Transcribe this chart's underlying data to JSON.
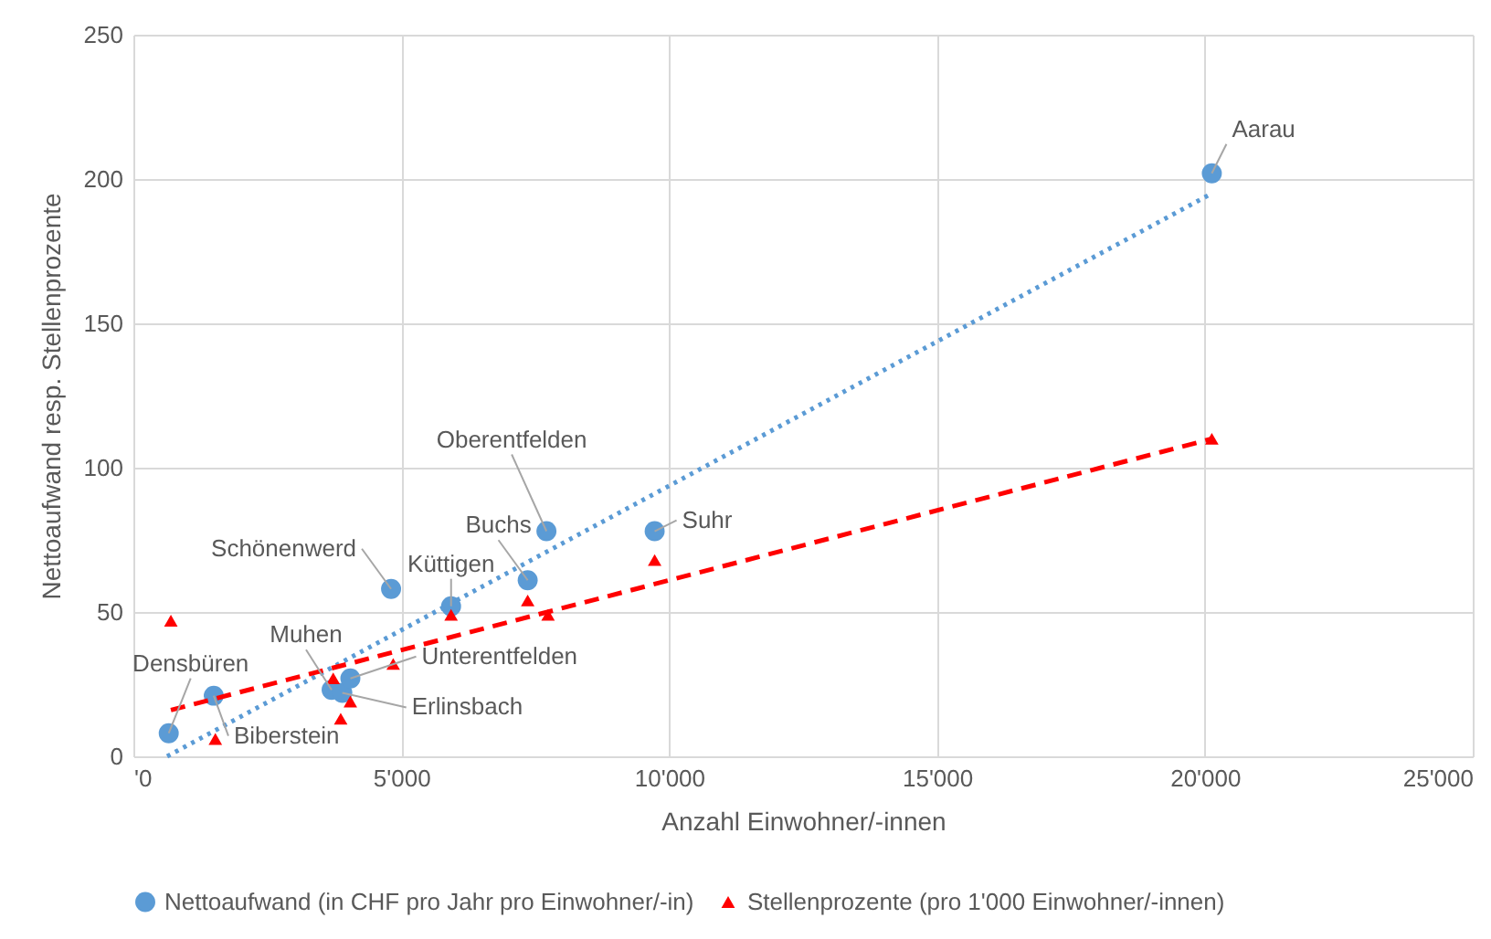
{
  "chart_data": {
    "type": "scatter",
    "xlabel": "Anzahl Einwohner/-innen",
    "ylabel": "Nettoaufwand resp. Stellenprozente",
    "xlim": [
      0,
      25000
    ],
    "xticks": [
      {
        "value": 0,
        "label": "'0"
      },
      {
        "value": 5000,
        "label": "5'000"
      },
      {
        "value": 10000,
        "label": "10'000"
      },
      {
        "value": 15000,
        "label": "15'000"
      },
      {
        "value": 20000,
        "label": "20'000"
      },
      {
        "value": 25000,
        "label": "25'000"
      }
    ],
    "ylim": [
      0,
      250
    ],
    "yticks": [
      0,
      50,
      100,
      150,
      200,
      250
    ],
    "grid": true,
    "legend": "bottom",
    "series": [
      {
        "name": "Nettoaufwand (in CHF pro Jahr pro Einwohner/-in)",
        "color": "#5b9bd5",
        "marker": "circle",
        "x": [
          660,
          1500,
          3700,
          3900,
          4050,
          4810,
          5930,
          7360,
          7710,
          9730,
          20130
        ],
        "values": [
          8,
          21,
          23,
          22,
          27,
          58,
          52,
          61,
          78,
          78,
          202
        ]
      },
      {
        "name": "Stellenprozente (pro 1'000 Einwohner/-innen)",
        "color": "#ff0000",
        "marker": "triangle",
        "x": [
          700,
          1530,
          3730,
          3870,
          4050,
          4850,
          5930,
          7360,
          7740,
          9730,
          20130
        ],
        "values": [
          47,
          6,
          27,
          13,
          19,
          32,
          49,
          54,
          49,
          68,
          110
        ]
      },
      {
        "type": "line",
        "color": "#5b9bd5",
        "line_style": "dotted",
        "x": [
          630,
          20130
        ],
        "values": [
          0,
          195
        ]
      },
      {
        "type": "line",
        "color": "#ff0000",
        "line_style": "dashed",
        "x": [
          700,
          20130
        ],
        "values": [
          16,
          110
        ]
      }
    ],
    "annotations": [
      {
        "text": "Densbüren",
        "x": 660,
        "y": 8
      },
      {
        "text": "Biberstein",
        "x": 1500,
        "y": 21
      },
      {
        "text": "Muhen",
        "x": 3700,
        "y": 23
      },
      {
        "text": "Erlinsbach",
        "x": 3900,
        "y": 22
      },
      {
        "text": "Unterentfelden",
        "x": 4050,
        "y": 27
      },
      {
        "text": "Schönenwerd",
        "x": 4810,
        "y": 58
      },
      {
        "text": "Küttigen",
        "x": 5930,
        "y": 52
      },
      {
        "text": "Buchs",
        "x": 7360,
        "y": 61
      },
      {
        "text": "Oberentfelden",
        "x": 7710,
        "y": 78
      },
      {
        "text": "Suhr",
        "x": 9730,
        "y": 78
      },
      {
        "text": "Aarau",
        "x": 20130,
        "y": 202
      }
    ]
  }
}
